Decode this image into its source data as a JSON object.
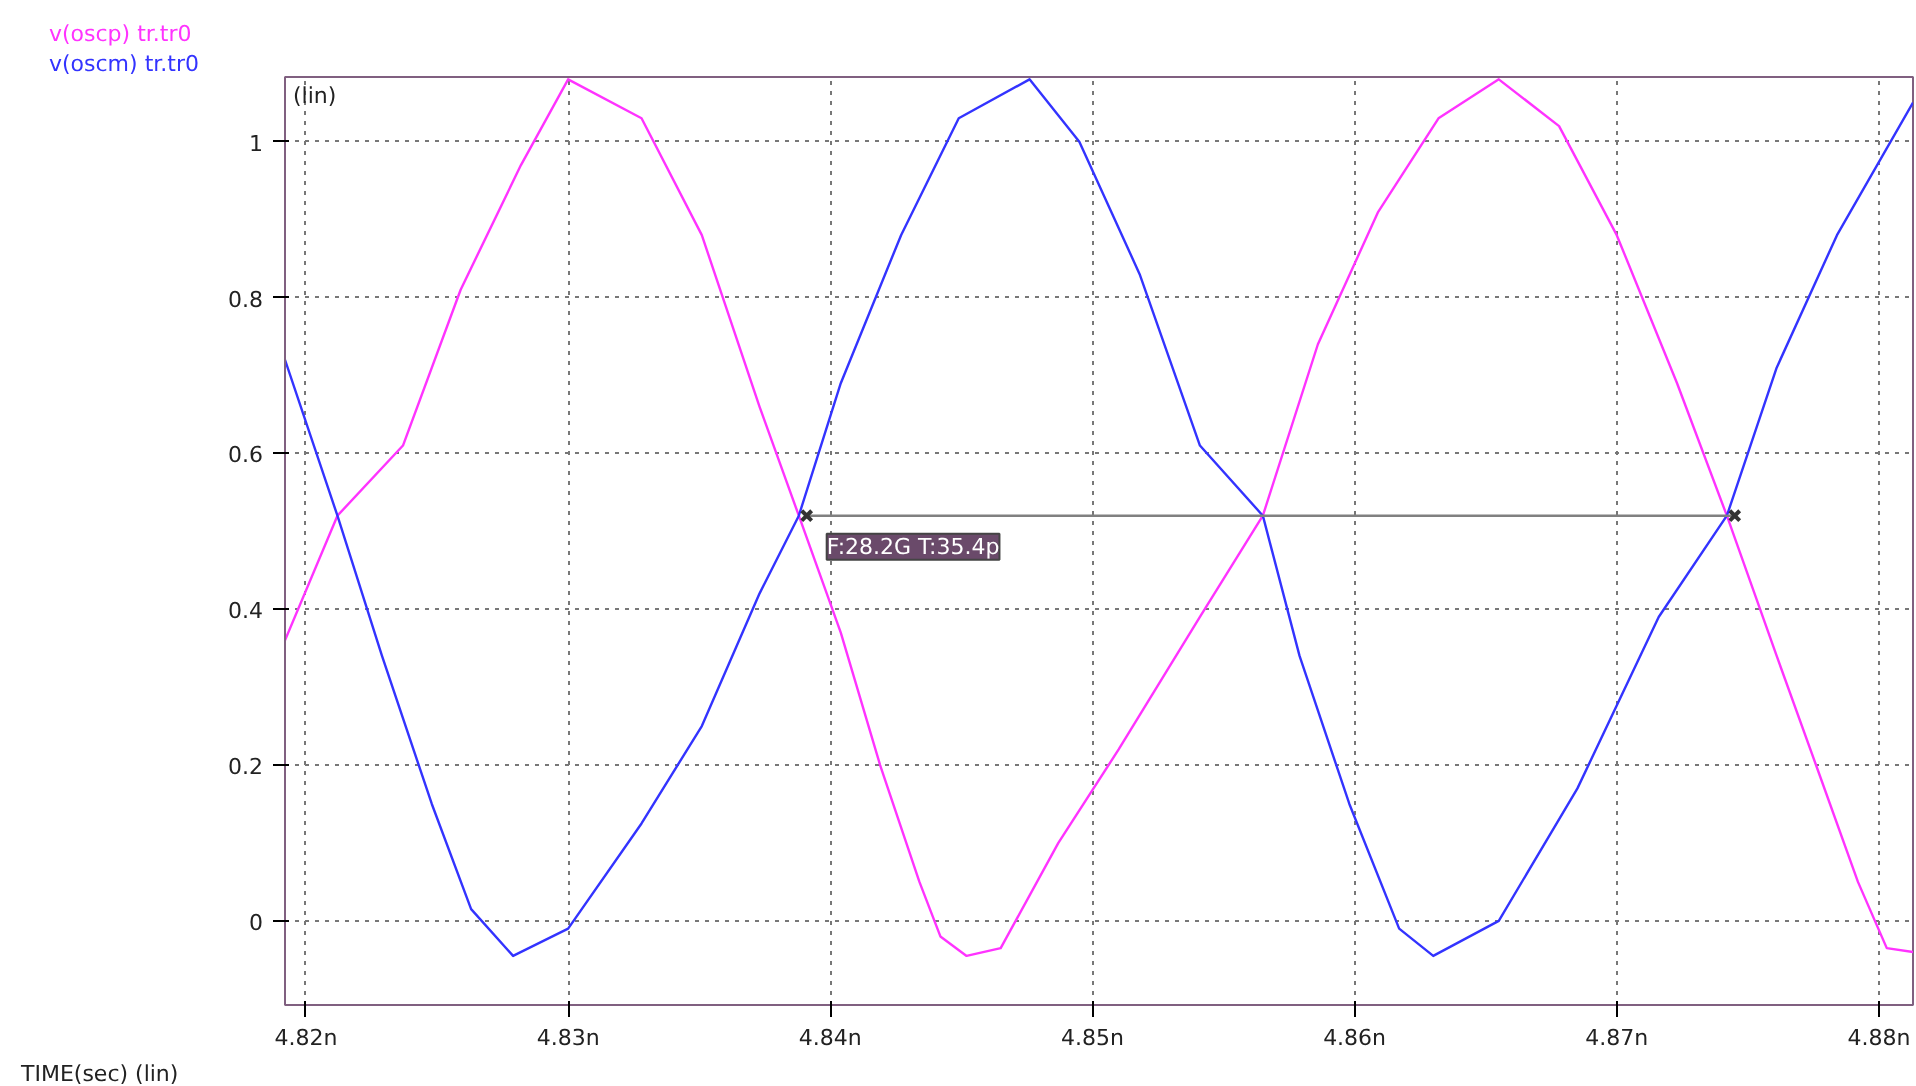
{
  "chart_data": {
    "type": "line",
    "xlabel": "TIME(sec) (lin)",
    "ylabel": "(lin)",
    "grid": true,
    "line_style": "solid",
    "marker": "none",
    "xlim": [
      4.8192,
      4.8813
    ],
    "ylim": [
      -0.108,
      1.083
    ],
    "xticks": [
      {
        "value": 4.82,
        "label": "4.82n"
      },
      {
        "value": 4.83,
        "label": "4.83n"
      },
      {
        "value": 4.84,
        "label": "4.84n"
      },
      {
        "value": 4.85,
        "label": "4.85n"
      },
      {
        "value": 4.86,
        "label": "4.86n"
      },
      {
        "value": 4.87,
        "label": "4.87n"
      },
      {
        "value": 4.88,
        "label": "4.88n"
      }
    ],
    "yticks": [
      0,
      0.2,
      0.4,
      0.6,
      0.8,
      1
    ],
    "series": [
      {
        "name": "v(oscp) tr.tr0",
        "color": "#ff33ff",
        "x": [
          4.8192,
          4.8212,
          4.8237,
          4.8259,
          4.8282,
          4.83,
          4.8328,
          4.8351,
          4.8373,
          4.8388,
          4.8404,
          4.8419,
          4.8434,
          4.8442,
          4.8452,
          4.8465,
          4.8487,
          4.851,
          4.8541,
          4.8565,
          4.8586,
          4.8609,
          4.8632,
          4.8655,
          4.8678,
          4.87,
          4.8723,
          4.8742,
          4.8761,
          4.8776,
          4.8792,
          4.8803,
          4.8813
        ],
        "values": [
          0.36,
          0.52,
          0.61,
          0.81,
          0.97,
          1.08,
          1.03,
          0.88,
          0.66,
          0.52,
          0.37,
          0.2,
          0.05,
          -0.02,
          -0.045,
          -0.035,
          0.1,
          0.22,
          0.39,
          0.52,
          0.74,
          0.91,
          1.03,
          1.08,
          1.02,
          0.88,
          0.69,
          0.52,
          0.34,
          0.2,
          0.05,
          -0.035,
          -0.04
        ]
      },
      {
        "name": "v(oscm) tr.tr0",
        "color": "#3333ff",
        "x": [
          4.8192,
          4.8212,
          4.8229,
          4.8248,
          4.8263,
          4.8279,
          4.83,
          4.8328,
          4.8351,
          4.8373,
          4.8388,
          4.8404,
          4.8427,
          4.8449,
          4.8476,
          4.8495,
          4.8518,
          4.8541,
          4.8565,
          4.8579,
          4.8598,
          4.8617,
          4.863,
          4.8655,
          4.8685,
          4.8716,
          4.8742,
          4.8761,
          4.8784,
          4.8813
        ],
        "values": [
          0.72,
          0.52,
          0.34,
          0.15,
          0.015,
          -0.045,
          -0.01,
          0.125,
          0.25,
          0.42,
          0.52,
          0.69,
          0.88,
          1.03,
          1.08,
          1.0,
          0.83,
          0.61,
          0.52,
          0.34,
          0.15,
          -0.01,
          -0.045,
          0.0,
          0.17,
          0.39,
          0.52,
          0.71,
          0.88,
          1.05
        ]
      },
      {
        "type": "line",
        "color": "#808080",
        "marker": "cross",
        "x": [
          4.8391,
          4.8745
        ],
        "values": [
          0.52,
          0.52
        ]
      }
    ],
    "annotations": [
      {
        "text": "F:28.2G T:35.4p",
        "x": 4.8391,
        "y": 0.52
      }
    ]
  }
}
